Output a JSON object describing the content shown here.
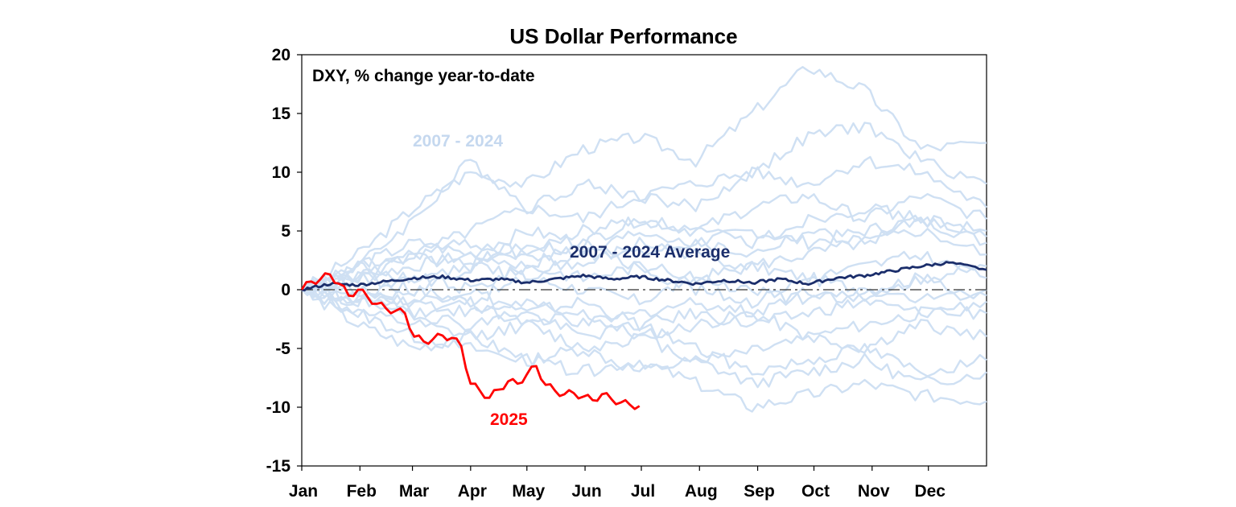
{
  "chart_data": {
    "type": "line",
    "title": "US Dollar Performance",
    "annotation": "DXY, % change year-to-date",
    "xlabel": "",
    "ylabel": "",
    "ylim": [
      -15,
      20
    ],
    "yticks": [
      20,
      15,
      10,
      5,
      0,
      -5,
      -10,
      -15
    ],
    "xlim": [
      0,
      365
    ],
    "month_ticks": [
      {
        "label": "Jan",
        "day": 0
      },
      {
        "label": "Feb",
        "day": 31
      },
      {
        "label": "Mar",
        "day": 59
      },
      {
        "label": "Apr",
        "day": 90
      },
      {
        "label": "May",
        "day": 120
      },
      {
        "label": "Jun",
        "day": 151
      },
      {
        "label": "Jul",
        "day": 181
      },
      {
        "label": "Aug",
        "day": 212
      },
      {
        "label": "Sep",
        "day": 243
      },
      {
        "label": "Oct",
        "day": 273
      },
      {
        "label": "Nov",
        "day": 304
      },
      {
        "label": "Dec",
        "day": 334
      }
    ],
    "zero_line": "dashed",
    "colors": {
      "history": "#cfe0f3",
      "average": "#1b2e6b",
      "current": "#ff0000",
      "history_label": "#c5d8ef"
    },
    "series_labels": {
      "history": "2007 - 2024",
      "average": "2007 - 2024 Average",
      "current": "2025"
    },
    "history_days": [
      0,
      30,
      60,
      90,
      120,
      150,
      180,
      210,
      240,
      270,
      300,
      330,
      365
    ],
    "history_series": [
      {
        "name": "path 1",
        "values": [
          0,
          3,
          7,
          10,
          9,
          12,
          13,
          11,
          15,
          19,
          17,
          12,
          12.5
        ]
      },
      {
        "name": "path 2",
        "values": [
          0,
          2,
          6,
          11,
          7,
          9,
          8,
          7,
          10,
          13,
          14,
          11,
          9
        ]
      },
      {
        "name": "path 3",
        "values": [
          0,
          1,
          3,
          5,
          7,
          6,
          8,
          9,
          10,
          9,
          11,
          10,
          7
        ]
      },
      {
        "name": "path 4",
        "values": [
          0,
          2,
          4,
          3,
          5,
          4,
          6,
          5,
          7,
          8,
          6,
          8,
          6
        ]
      },
      {
        "name": "path 5",
        "values": [
          0,
          1,
          2,
          3,
          2,
          4,
          3,
          4,
          5,
          4,
          5,
          6,
          4
        ]
      },
      {
        "name": "path 6",
        "values": [
          0,
          2,
          1,
          2,
          3,
          2,
          4,
          3,
          2,
          3,
          4,
          5,
          3
        ]
      },
      {
        "name": "path 7",
        "values": [
          0,
          -1,
          1,
          0,
          2,
          1,
          2,
          0,
          -1,
          1,
          2,
          3,
          1
        ]
      },
      {
        "name": "path 8",
        "values": [
          0,
          0,
          -1,
          -2,
          -1,
          -3,
          -2,
          -1,
          -2,
          0,
          -1,
          1,
          -0.5
        ]
      },
      {
        "name": "path 9",
        "values": [
          0,
          -1,
          -2,
          -1,
          -3,
          -2,
          -4,
          -3,
          -2,
          -4,
          -3,
          -2,
          -2
        ]
      },
      {
        "name": "path 10",
        "values": [
          0,
          -2,
          -3,
          -4,
          -3,
          -5,
          -4,
          -6,
          -5,
          -4,
          -5,
          -3,
          -4
        ]
      },
      {
        "name": "path 11",
        "values": [
          0,
          -2,
          -4,
          -5,
          -6,
          -5,
          -7,
          -6,
          -8,
          -7,
          -6,
          -8,
          -7
        ]
      },
      {
        "name": "path 12",
        "values": [
          0,
          -3,
          -5,
          -4,
          -6,
          -7,
          -6,
          -8,
          -10,
          -9,
          -8,
          -9,
          -9.5
        ]
      },
      {
        "name": "path 13",
        "values": [
          0,
          1,
          0,
          2,
          1,
          3,
          2,
          1,
          0,
          -1,
          0,
          -1,
          0
        ]
      },
      {
        "name": "path 14",
        "values": [
          0,
          1,
          3,
          2,
          4,
          3,
          5,
          4,
          3,
          5,
          4,
          6,
          5
        ]
      },
      {
        "name": "path 15",
        "values": [
          0,
          -1,
          0,
          -1,
          1,
          0,
          -1,
          1,
          2,
          1,
          0,
          1,
          2
        ]
      },
      {
        "name": "path 16",
        "values": [
          0,
          2,
          3,
          4,
          3,
          5,
          6,
          5,
          4,
          6,
          7,
          6,
          4.5
        ]
      },
      {
        "name": "path 17",
        "values": [
          0,
          0,
          -2,
          -3,
          -2,
          -4,
          -3,
          -5,
          -7,
          -6,
          -5,
          -7,
          -6
        ]
      },
      {
        "name": "path 18",
        "values": [
          0,
          -1,
          -1,
          0,
          -2,
          -1,
          -3,
          -2,
          -3,
          -2,
          -1,
          -2,
          -1
        ]
      }
    ],
    "average": {
      "days": [
        0,
        15,
        30,
        45,
        60,
        75,
        90,
        105,
        120,
        135,
        150,
        165,
        180,
        195,
        210,
        225,
        240,
        255,
        270,
        285,
        300,
        315,
        330,
        345,
        365
      ],
      "values": [
        0,
        0.5,
        0.4,
        0.7,
        1.0,
        1.1,
        0.8,
        0.9,
        0.6,
        0.9,
        1.2,
        0.9,
        1.1,
        0.8,
        0.5,
        0.8,
        0.6,
        0.9,
        0.5,
        1.0,
        1.2,
        1.6,
        2.0,
        2.3,
        1.7
      ]
    },
    "current": {
      "days": [
        0,
        5,
        10,
        15,
        20,
        25,
        30,
        35,
        40,
        45,
        50,
        55,
        60,
        65,
        70,
        75,
        80,
        85,
        90,
        95,
        100,
        105,
        110,
        115,
        120,
        125,
        130,
        135,
        140,
        145,
        150,
        155,
        160,
        165,
        170,
        175,
        180
      ],
      "values": [
        0,
        0.7,
        0.9,
        1.3,
        0.5,
        -0.5,
        0.0,
        -0.6,
        -1.2,
        -1.6,
        -1.8,
        -2.0,
        -4.0,
        -4.4,
        -4.2,
        -3.9,
        -4.1,
        -4.8,
        -8.0,
        -8.6,
        -9.2,
        -8.5,
        -7.8,
        -8.0,
        -7.2,
        -6.5,
        -8.1,
        -8.6,
        -8.9,
        -8.8,
        -9.1,
        -9.4,
        -8.9,
        -9.3,
        -9.6,
        -9.8,
        -9.9
      ]
    }
  }
}
